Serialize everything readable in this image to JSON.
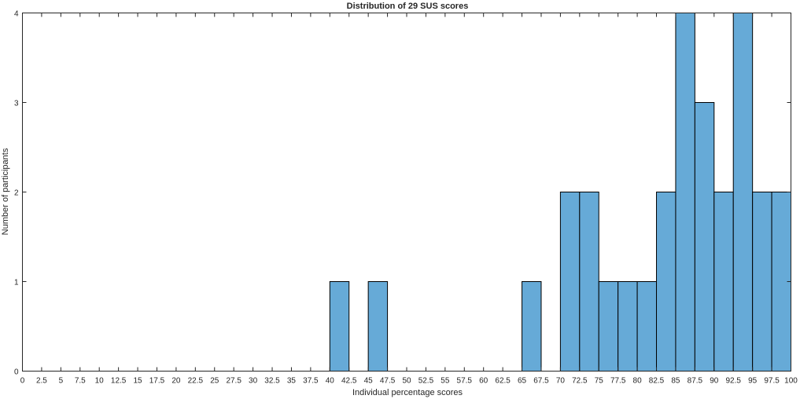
{
  "chart_data": {
    "type": "bar",
    "title": "Distribution of 29 SUS scores",
    "xlabel": "Individual percentage scores",
    "ylabel": "Number of participants",
    "xlim": [
      0,
      100
    ],
    "ylim": [
      0,
      4
    ],
    "bin_width": 2.5,
    "x_ticks": [
      "0",
      "2.5",
      "5",
      "7.5",
      "10",
      "12.5",
      "15",
      "17.5",
      "20",
      "22.5",
      "25",
      "27.5",
      "30",
      "32.5",
      "35",
      "37.5",
      "40",
      "42.5",
      "45",
      "47.5",
      "50",
      "52.5",
      "55",
      "57.5",
      "60",
      "62.5",
      "65",
      "67.5",
      "70",
      "72.5",
      "75",
      "77.5",
      "80",
      "82.5",
      "85",
      "87.5",
      "90",
      "92.5",
      "95",
      "97.5",
      "100"
    ],
    "y_ticks": [
      "0",
      "1",
      "2",
      "3",
      "4"
    ],
    "bins": [
      {
        "x_start": 40,
        "x_end": 42.5,
        "count": 1
      },
      {
        "x_start": 45,
        "x_end": 47.5,
        "count": 1
      },
      {
        "x_start": 65,
        "x_end": 67.5,
        "count": 1
      },
      {
        "x_start": 70,
        "x_end": 72.5,
        "count": 2
      },
      {
        "x_start": 72.5,
        "x_end": 75,
        "count": 2
      },
      {
        "x_start": 75,
        "x_end": 77.5,
        "count": 1
      },
      {
        "x_start": 77.5,
        "x_end": 80,
        "count": 1
      },
      {
        "x_start": 80,
        "x_end": 82.5,
        "count": 1
      },
      {
        "x_start": 82.5,
        "x_end": 85,
        "count": 2
      },
      {
        "x_start": 85,
        "x_end": 87.5,
        "count": 4
      },
      {
        "x_start": 87.5,
        "x_end": 90,
        "count": 3
      },
      {
        "x_start": 90,
        "x_end": 92.5,
        "count": 2
      },
      {
        "x_start": 92.5,
        "x_end": 95,
        "count": 4
      },
      {
        "x_start": 95,
        "x_end": 97.5,
        "count": 2
      },
      {
        "x_start": 97.5,
        "x_end": 100,
        "count": 2
      }
    ],
    "bar_color": "#66aad7",
    "bar_edge_color": "#000000",
    "grid": false
  }
}
